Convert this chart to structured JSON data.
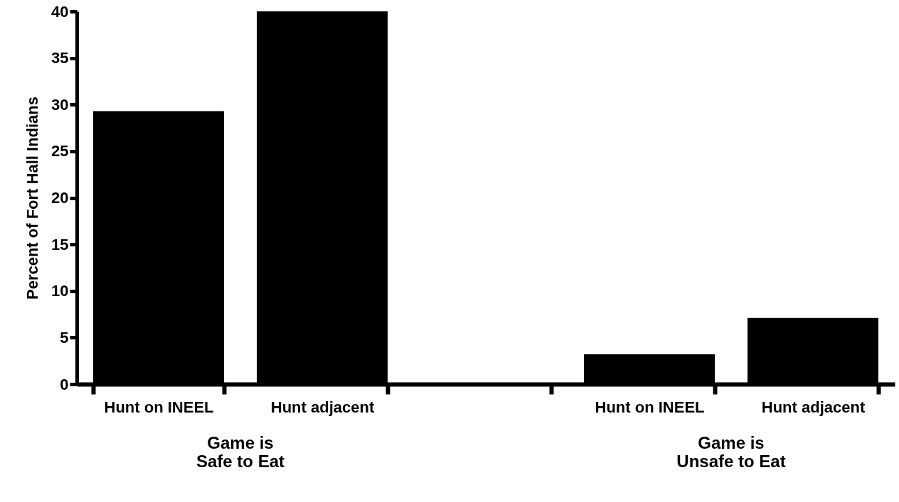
{
  "chart_data": {
    "type": "bar",
    "ylabel": "Percent of Fort Hall Indians",
    "categories": [
      "Hunt on INEEL",
      "Hunt adjacent",
      null,
      "Hunt on INEEL",
      "Hunt adjacent"
    ],
    "values": [
      29.3,
      40,
      null,
      3.2,
      7.1
    ],
    "color": "#000000",
    "ylim": [
      0,
      40
    ],
    "yticks": [
      0,
      5,
      10,
      15,
      20,
      25,
      30,
      35,
      40
    ],
    "grid": false,
    "annotations": [
      "Game is\nSafe to Eat",
      "Game is\nUnsafe to Eat"
    ]
  }
}
